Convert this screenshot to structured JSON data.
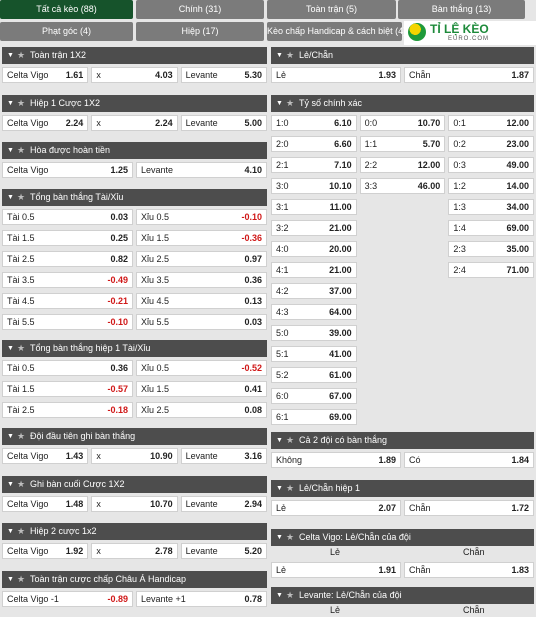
{
  "tabs": [
    {
      "label": "Tất cả kèo (88)",
      "active": true
    },
    {
      "label": "Chính (31)"
    },
    {
      "label": "Toàn trận (5)"
    },
    {
      "label": "Bàn thắng (13)"
    },
    {
      "label": "Phạt góc (4)"
    },
    {
      "label": "Hiệp (17)"
    },
    {
      "label": "Kèo chấp Handicap & cách biệt (4)"
    }
  ],
  "logo": {
    "text": "TỈ LỆ KÈO",
    "sub": "EURO.COM"
  },
  "left": [
    {
      "title": "Toàn trận 1X2",
      "rows": [
        [
          [
            "Celta Vigo",
            "1.61"
          ],
          [
            "x",
            "4.03"
          ],
          [
            "Levante",
            "5.30"
          ]
        ]
      ]
    },
    {
      "title": "Hiệp 1 Cược 1X2",
      "rows": [
        [
          [
            "Celta Vigo",
            "2.24"
          ],
          [
            "x",
            "2.24"
          ],
          [
            "Levante",
            "5.00"
          ]
        ]
      ]
    },
    {
      "title": "Hòa được hoàn tiền",
      "rows": [
        [
          [
            "Celta Vigo",
            "1.25"
          ],
          [
            "Levante",
            "4.10"
          ]
        ]
      ]
    },
    {
      "title": "Tổng bàn thắng Tài/Xỉu",
      "rows": [
        [
          [
            "Tài 0.5",
            "0.03"
          ],
          [
            "Xỉu 0.5",
            "-0.10"
          ]
        ],
        [
          [
            "Tài 1.5",
            "0.25"
          ],
          [
            "Xỉu 1.5",
            "-0.36"
          ]
        ],
        [
          [
            "Tài 2.5",
            "0.82"
          ],
          [
            "Xỉu 2.5",
            "0.97"
          ]
        ],
        [
          [
            "Tài 3.5",
            "-0.49"
          ],
          [
            "Xỉu 3.5",
            "0.36"
          ]
        ],
        [
          [
            "Tài 4.5",
            "-0.21"
          ],
          [
            "Xỉu 4.5",
            "0.13"
          ]
        ],
        [
          [
            "Tài 5.5",
            "-0.10"
          ],
          [
            "Xỉu 5.5",
            "0.03"
          ]
        ]
      ]
    },
    {
      "title": "Tổng bàn thắng hiệp 1 Tài/Xỉu",
      "rows": [
        [
          [
            "Tài 0.5",
            "0.36"
          ],
          [
            "Xỉu 0.5",
            "-0.52"
          ]
        ],
        [
          [
            "Tài 1.5",
            "-0.57"
          ],
          [
            "Xỉu 1.5",
            "0.41"
          ]
        ],
        [
          [
            "Tài 2.5",
            "-0.18"
          ],
          [
            "Xỉu 2.5",
            "0.08"
          ]
        ]
      ]
    },
    {
      "title": "Đội đầu tiên ghi bàn thắng",
      "rows": [
        [
          [
            "Celta Vigo",
            "1.43"
          ],
          [
            "x",
            "10.90"
          ],
          [
            "Levante",
            "3.16"
          ]
        ]
      ]
    },
    {
      "title": "Ghi bàn cuối Cược 1X2",
      "rows": [
        [
          [
            "Celta Vigo",
            "1.48"
          ],
          [
            "x",
            "10.70"
          ],
          [
            "Levante",
            "2.94"
          ]
        ]
      ]
    },
    {
      "title": "Hiệp 2 cược 1x2",
      "rows": [
        [
          [
            "Celta Vigo",
            "1.92"
          ],
          [
            "x",
            "2.78"
          ],
          [
            "Levante",
            "5.20"
          ]
        ]
      ]
    },
    {
      "title": "Toàn trận cược chấp Châu Á Handicap",
      "rows": [
        [
          [
            "Celta Vigo -1",
            "-0.89"
          ],
          [
            "Levante +1",
            "0.78"
          ]
        ]
      ]
    }
  ],
  "right": [
    {
      "title": "Lẻ/Chẵn",
      "rows": [
        [
          [
            "Lẻ",
            "1.93"
          ],
          [
            "Chẵn",
            "1.87"
          ]
        ]
      ]
    },
    {
      "title": "Tỷ số chính xác",
      "rows": [
        [
          [
            "1:0",
            "6.10"
          ],
          [
            "0:0",
            "10.70"
          ],
          [
            "0:1",
            "12.00"
          ]
        ],
        [
          [
            "2:0",
            "6.60"
          ],
          [
            "1:1",
            "5.70"
          ],
          [
            "0:2",
            "23.00"
          ]
        ],
        [
          [
            "2:1",
            "7.10"
          ],
          [
            "2:2",
            "12.00"
          ],
          [
            "0:3",
            "49.00"
          ]
        ],
        [
          [
            "3:0",
            "10.10"
          ],
          [
            "3:3",
            "46.00"
          ],
          [
            "1:2",
            "14.00"
          ]
        ],
        [
          [
            "3:1",
            "11.00"
          ],
          null,
          [
            "1:3",
            "34.00"
          ]
        ],
        [
          [
            "3:2",
            "21.00"
          ],
          null,
          [
            "1:4",
            "69.00"
          ]
        ],
        [
          [
            "4:0",
            "20.00"
          ],
          null,
          [
            "2:3",
            "35.00"
          ]
        ],
        [
          [
            "4:1",
            "21.00"
          ],
          null,
          [
            "2:4",
            "71.00"
          ]
        ],
        [
          [
            "4:2",
            "37.00"
          ]
        ],
        [
          [
            "4:3",
            "64.00"
          ]
        ],
        [
          [
            "5:0",
            "39.00"
          ]
        ],
        [
          [
            "5:1",
            "41.00"
          ]
        ],
        [
          [
            "5:2",
            "61.00"
          ]
        ],
        [
          [
            "6:0",
            "67.00"
          ]
        ],
        [
          [
            "6:1",
            "69.00"
          ]
        ]
      ]
    },
    {
      "title": "Cả 2 đội có bàn thắng",
      "rows": [
        [
          [
            "Không",
            "1.89"
          ],
          [
            "Có",
            "1.84"
          ]
        ]
      ]
    },
    {
      "title": "Lẻ/Chẵn hiệp 1",
      "rows": [
        [
          [
            "Lẻ",
            "2.07"
          ],
          [
            "Chẵn",
            "1.72"
          ]
        ]
      ]
    },
    {
      "title": "Celta Vigo: Lẻ/Chẵn của đội",
      "sub": [
        "Lẻ",
        "Chẵn"
      ],
      "rows": [
        [
          [
            "Lẻ",
            "1.91"
          ],
          [
            "Chẵn",
            "1.83"
          ]
        ]
      ]
    },
    {
      "title": "Levante: Lẻ/Chẵn của đội",
      "sub": [
        "Lẻ",
        "Chẵn"
      ],
      "rows": []
    }
  ],
  "colors": {
    "active_tab": "#16532b",
    "tab": "#7b7b7b",
    "header": "#4d4d4d",
    "negative": "#d01818"
  }
}
